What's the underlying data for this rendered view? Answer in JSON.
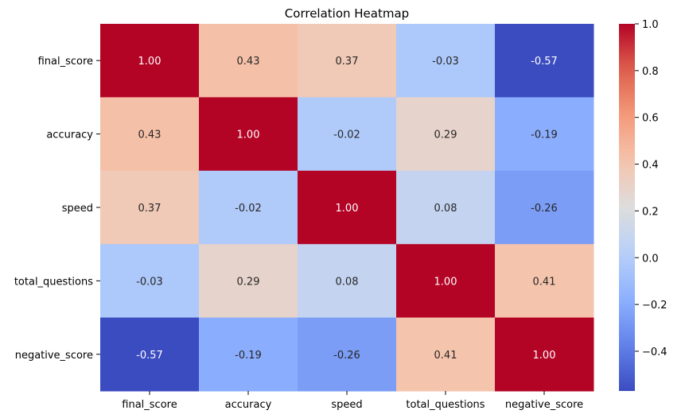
{
  "chart_data": {
    "type": "heatmap",
    "title": "Correlation Heatmap",
    "xlabel": "",
    "ylabel": "",
    "x_categories": [
      "final_score",
      "accuracy",
      "speed",
      "total_questions",
      "negative_score"
    ],
    "y_categories": [
      "final_score",
      "accuracy",
      "speed",
      "total_questions",
      "negative_score"
    ],
    "values": [
      [
        1.0,
        0.43,
        0.37,
        -0.03,
        -0.57
      ],
      [
        0.43,
        1.0,
        -0.02,
        0.29,
        -0.19
      ],
      [
        0.37,
        -0.02,
        1.0,
        0.08,
        -0.26
      ],
      [
        -0.03,
        0.29,
        0.08,
        1.0,
        0.41
      ],
      [
        -0.57,
        -0.19,
        -0.26,
        0.41,
        1.0
      ]
    ],
    "annotation_format": "0.00",
    "colormap": "coolwarm",
    "colorbar": {
      "range": [
        -0.57,
        1.0
      ],
      "ticks": [
        1.0,
        0.8,
        0.6,
        0.4,
        0.2,
        0.0,
        -0.2,
        -0.4
      ],
      "tick_labels": [
        "1.0",
        "0.8",
        "0.6",
        "0.4",
        "0.2",
        "0.0",
        "−0.2",
        "−0.4"
      ]
    },
    "grid": false,
    "legend": "colorbar-right"
  }
}
